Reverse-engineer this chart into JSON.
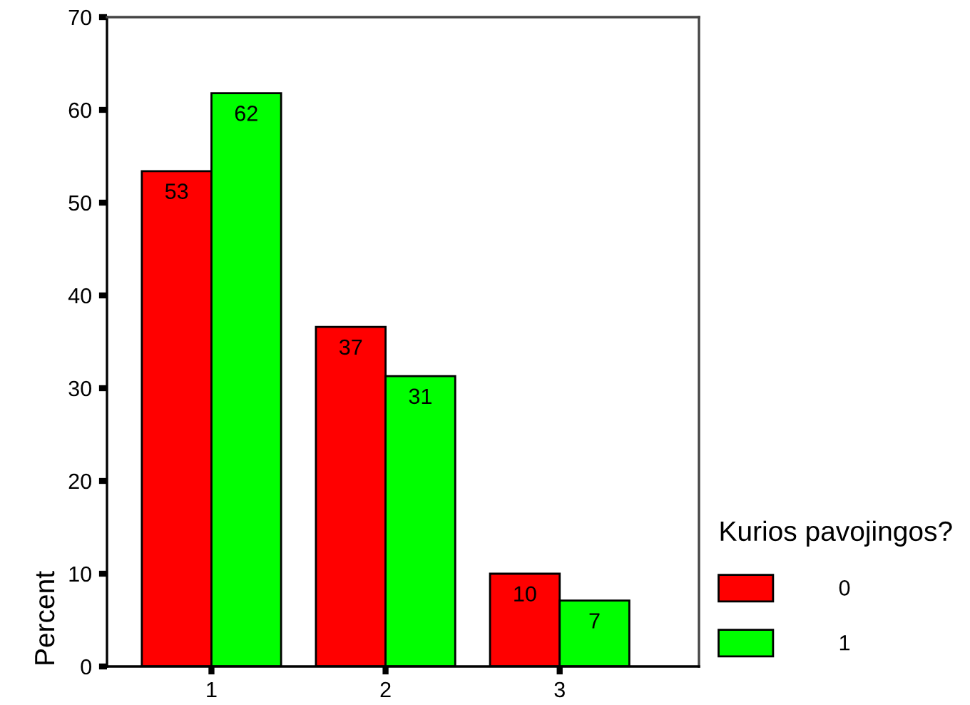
{
  "chart_data": {
    "type": "bar",
    "ylabel": "Percent",
    "legend_title": "Kurios pavojingos?",
    "categories": [
      "1",
      "2",
      "3"
    ],
    "series": [
      {
        "name": "0",
        "color": "#ff0000",
        "values": [
          53.4,
          36.6,
          10.0
        ],
        "value_labels": [
          "53",
          "37",
          "10"
        ]
      },
      {
        "name": "1",
        "color": "#00ff00",
        "values": [
          61.8,
          31.3,
          7.1
        ],
        "value_labels": [
          "62",
          "31",
          "7"
        ]
      }
    ],
    "ylim": [
      0,
      70
    ],
    "yticks": [
      0,
      10,
      20,
      30,
      40,
      50,
      60,
      70
    ],
    "grid": false,
    "legend": "right"
  }
}
